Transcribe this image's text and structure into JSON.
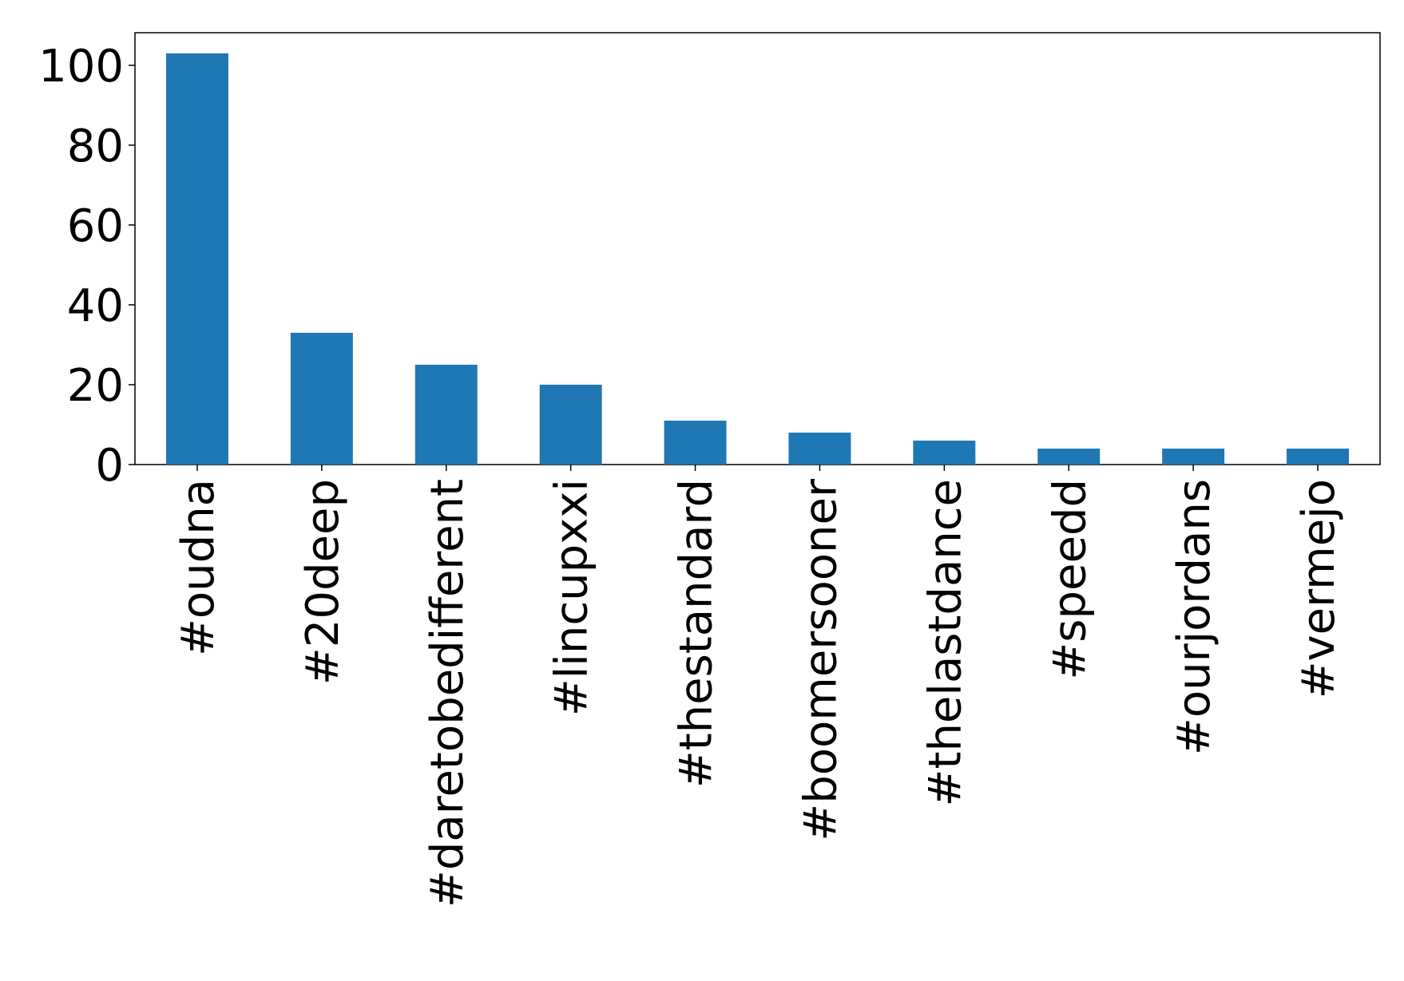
{
  "chart_data": {
    "type": "bar",
    "categories": [
      "#oudna",
      "#20deep",
      "#daretobedifferent",
      "#lincupxxi",
      "#thestandard",
      "#boomersooner",
      "#thelastdance",
      "#speedd",
      "#ourjordans",
      "#vermejo"
    ],
    "values": [
      103,
      33,
      25,
      20,
      11,
      8,
      6,
      4,
      4,
      4
    ],
    "color": "#1f77b4",
    "ylim": [
      0,
      108.15
    ],
    "yticks": [
      0,
      20,
      40,
      60,
      80,
      100
    ],
    "grid": false
  }
}
